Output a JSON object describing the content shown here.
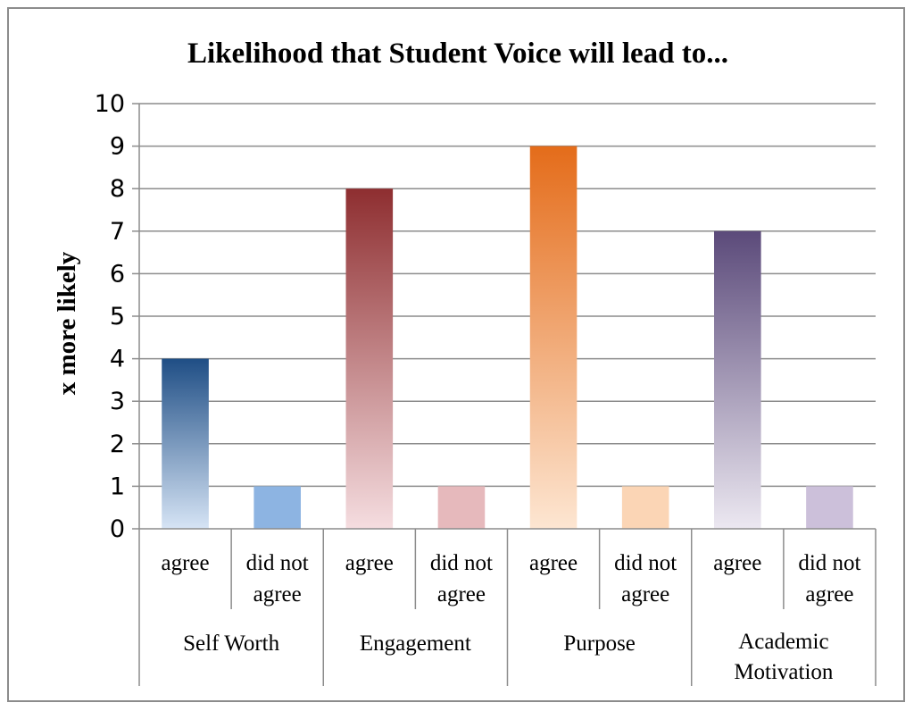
{
  "chart_data": {
    "type": "bar",
    "title": "Likelihood that Student Voice will lead to...",
    "ylabel": "x more likely",
    "xlabel": "",
    "ylim": [
      0,
      10
    ],
    "yticks": [
      0,
      1,
      2,
      3,
      4,
      5,
      6,
      7,
      8,
      9,
      10
    ],
    "grid": true,
    "legend": "none",
    "groups": [
      {
        "label": "Self Worth",
        "bars": [
          {
            "label": "agree",
            "value": 4,
            "color_top": "#1f4e85",
            "color_bottom": "#d6e4f5"
          },
          {
            "label": "did not agree",
            "value": 1,
            "color_top": "#8db4e2",
            "color_bottom": "#8db4e2"
          }
        ]
      },
      {
        "label": "Engagement",
        "bars": [
          {
            "label": "agree",
            "value": 8,
            "color_top": "#8e2e30",
            "color_bottom": "#f5dde0"
          },
          {
            "label": "did not agree",
            "value": 1,
            "color_top": "#e6b9bc",
            "color_bottom": "#e6b9bc"
          }
        ]
      },
      {
        "label": "Purpose",
        "bars": [
          {
            "label": "agree",
            "value": 9,
            "color_top": "#e46c1a",
            "color_bottom": "#fde6d2"
          },
          {
            "label": "did not agree",
            "value": 1,
            "color_top": "#fbd5b5",
            "color_bottom": "#fbd5b5"
          }
        ]
      },
      {
        "label": "Academic Motivation",
        "bars": [
          {
            "label": "agree",
            "value": 7,
            "color_top": "#5b4a7a",
            "color_bottom": "#ece8f1"
          },
          {
            "label": "did not agree",
            "value": 1,
            "color_top": "#ccc0da",
            "color_bottom": "#ccc0da"
          }
        ]
      }
    ]
  }
}
